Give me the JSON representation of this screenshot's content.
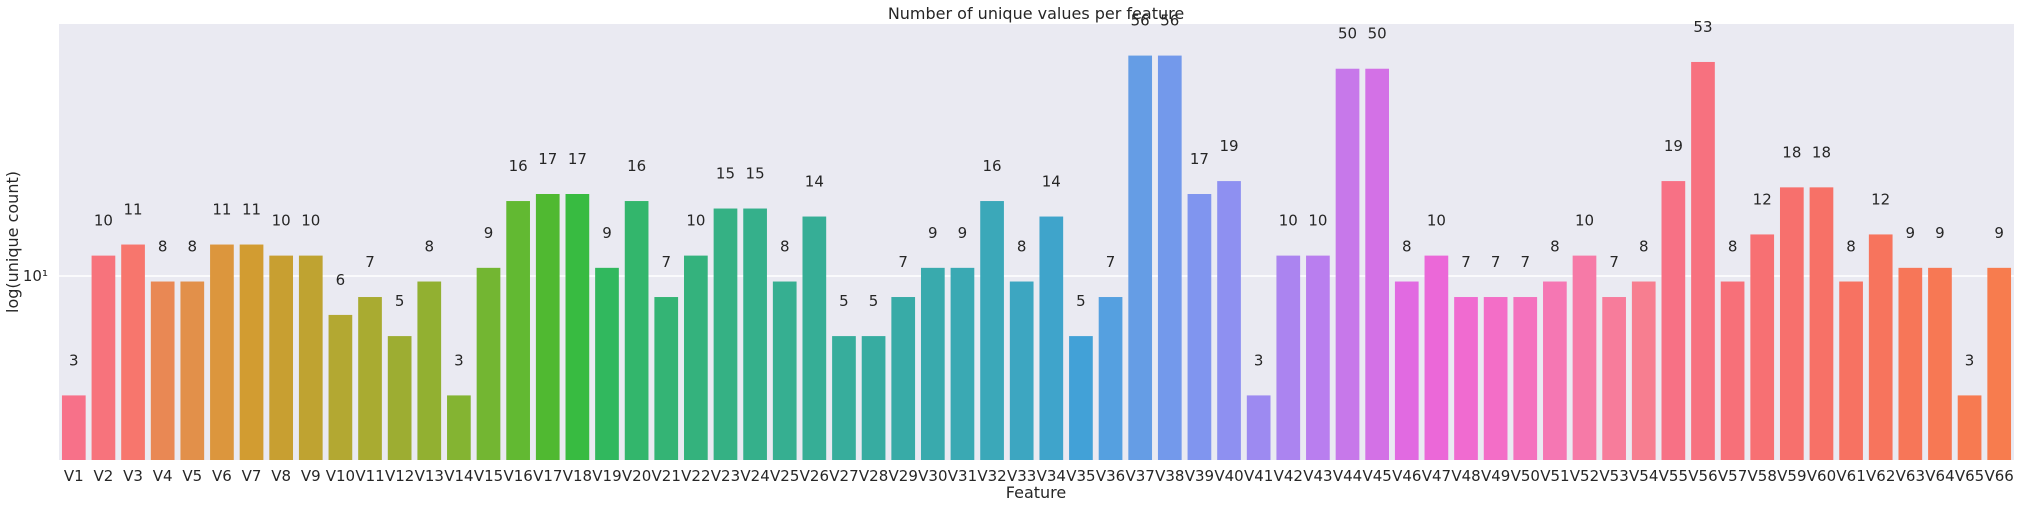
{
  "chart_data": {
    "type": "bar",
    "title": "Number of unique values per feature",
    "xlabel": "Feature",
    "ylabel": "log(unique count)",
    "yscale": "log",
    "y_tick_label": "10¹",
    "ylim": [
      1.72,
      73.5
    ],
    "grid": true,
    "background_color": "#EAEAF2",
    "categories": [
      "V1",
      "V2",
      "V3",
      "V4",
      "V5",
      "V6",
      "V7",
      "V8",
      "V9",
      "V10",
      "V11",
      "V12",
      "V13",
      "V14",
      "V15",
      "V16",
      "V17",
      "V18",
      "V19",
      "V20",
      "V21",
      "V22",
      "V23",
      "V24",
      "V25",
      "V26",
      "V27",
      "V28",
      "V29",
      "V30",
      "V31",
      "V32",
      "V33",
      "V34",
      "V35",
      "V36",
      "V37",
      "V38",
      "V39",
      "V40",
      "V41",
      "V42",
      "V43",
      "V44",
      "V45",
      "V46",
      "V47",
      "V48",
      "V49",
      "V50",
      "V51",
      "V52",
      "V53",
      "V54",
      "V55",
      "V56",
      "V57",
      "V58",
      "V59",
      "V60",
      "V61",
      "V62",
      "V63",
      "V64",
      "V65",
      "V66"
    ],
    "values": [
      3,
      10,
      11,
      8,
      8,
      11,
      11,
      10,
      10,
      6,
      7,
      5,
      8,
      3,
      9,
      16,
      17,
      17,
      9,
      16,
      7,
      10,
      15,
      15,
      8,
      14,
      5,
      5,
      7,
      9,
      9,
      16,
      8,
      14,
      5,
      7,
      56,
      56,
      17,
      19,
      3,
      10,
      10,
      50,
      50,
      8,
      10,
      7,
      7,
      7,
      8,
      10,
      7,
      8,
      19,
      53,
      8,
      12,
      18,
      18,
      8,
      12,
      9,
      9,
      3,
      9
    ],
    "colors": [
      "#f77189",
      "#f7737c",
      "#f7766d",
      "#e98854",
      "#e2904a",
      "#dc963d",
      "#d29c31",
      "#c89f31",
      "#bfa331",
      "#b3a832",
      "#a9ab31",
      "#9dad32",
      "#92b031",
      "#84b432",
      "#73b632",
      "#62b932",
      "#50b931",
      "#38bb41",
      "#31b85e",
      "#33b66c",
      "#34b475",
      "#34b27d",
      "#35b184",
      "#35b08b",
      "#36af91",
      "#36ae96",
      "#37ad9c",
      "#37aca1",
      "#38aba7",
      "#39aaad",
      "#3aa9b3",
      "#3ba8b9",
      "#3da6c1",
      "#3fa4cb",
      "#42a1d7",
      "#55a0e0",
      "#659de5",
      "#7399eb",
      "#8095ef",
      "#8e90f1",
      "#9d8af1",
      "#ab84f0",
      "#b97eef",
      "#c778ea",
      "#d371e6",
      "#e16ae1",
      "#eb68d8",
      "#f06bd0",
      "#f36ec7",
      "#f472be",
      "#f577b3",
      "#f67aa7",
      "#f77c9b",
      "#f77e90",
      "#f77185",
      "#f7717f",
      "#f77079",
      "#f77073",
      "#f7706d",
      "#f77167",
      "#f77262",
      "#f7745d",
      "#f77658",
      "#f77854",
      "#f77a51",
      "#f77c4e"
    ],
    "bar_labels": [
      "3",
      "10",
      "11",
      "8",
      "8",
      "11",
      "11",
      "10",
      "10",
      "6",
      "7",
      "5",
      "8",
      "3",
      "9",
      "16",
      "17",
      "17",
      "9",
      "16",
      "7",
      "10",
      "15",
      "15",
      "8",
      "14",
      "5",
      "5",
      "7",
      "9",
      "9",
      "16",
      "8",
      "14",
      "5",
      "7",
      "56",
      "56",
      "17",
      "19",
      "3",
      "10",
      "10",
      "50",
      "50",
      "8",
      "10",
      "7",
      "7",
      "7",
      "8",
      "10",
      "7",
      "8",
      "19",
      "53",
      "8",
      "12",
      "18",
      "18",
      "8",
      "12",
      "9",
      "9",
      "3",
      "9"
    ]
  }
}
